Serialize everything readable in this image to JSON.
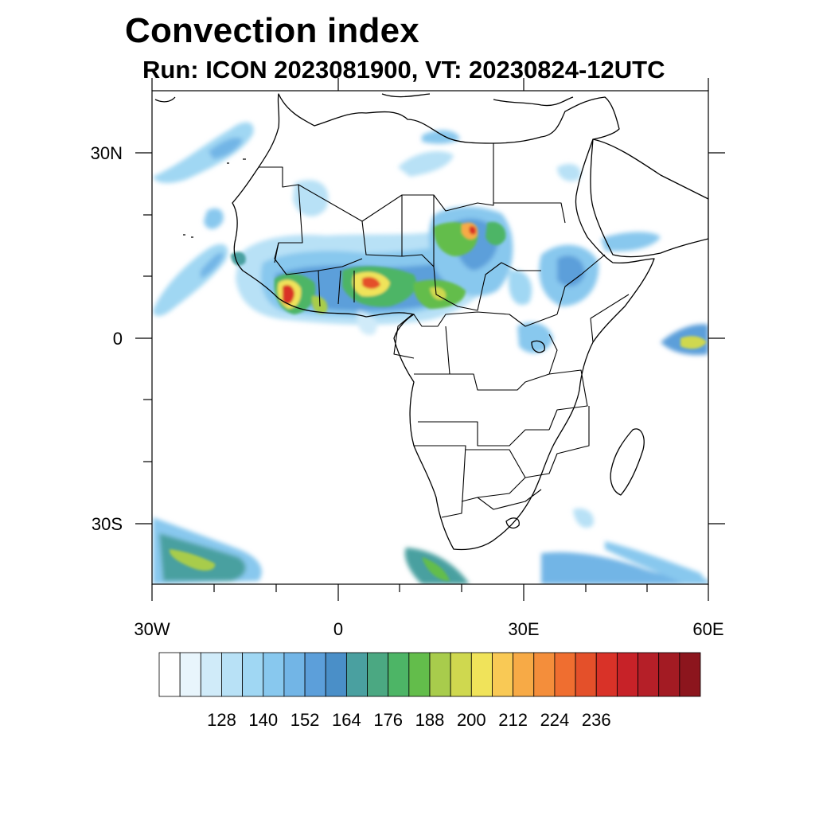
{
  "title": "Convection index",
  "subtitle": "Run: ICON 2023081900,  VT: 20230824-12UTC",
  "axes": {
    "lon_labels": [
      "30W",
      "0",
      "30E",
      "60E"
    ],
    "lat_labels": [
      "30N",
      "0",
      "30S"
    ]
  },
  "colorbar": {
    "labels": [
      "128",
      "140",
      "152",
      "164",
      "176",
      "188",
      "200",
      "212",
      "224",
      "236"
    ],
    "colors": [
      "#ffffff",
      "#e8f5fc",
      "#d0ebf9",
      "#b8e1f6",
      "#a0d7f3",
      "#88c8ee",
      "#72b5e6",
      "#5c9fda",
      "#4a8fc8",
      "#4aa0a0",
      "#4ba882",
      "#4db566",
      "#63bd4b",
      "#a8cc4c",
      "#cfd84f",
      "#f0e35a",
      "#f9c955",
      "#f7aa46",
      "#f48e3b",
      "#ef6e30",
      "#e4502a",
      "#d93228",
      "#c72228",
      "#b51f28",
      "#a31b23",
      "#8c151d"
    ]
  },
  "map": {
    "lon_range": [
      -30,
      60
    ],
    "lat_range": [
      -40,
      40
    ]
  }
}
